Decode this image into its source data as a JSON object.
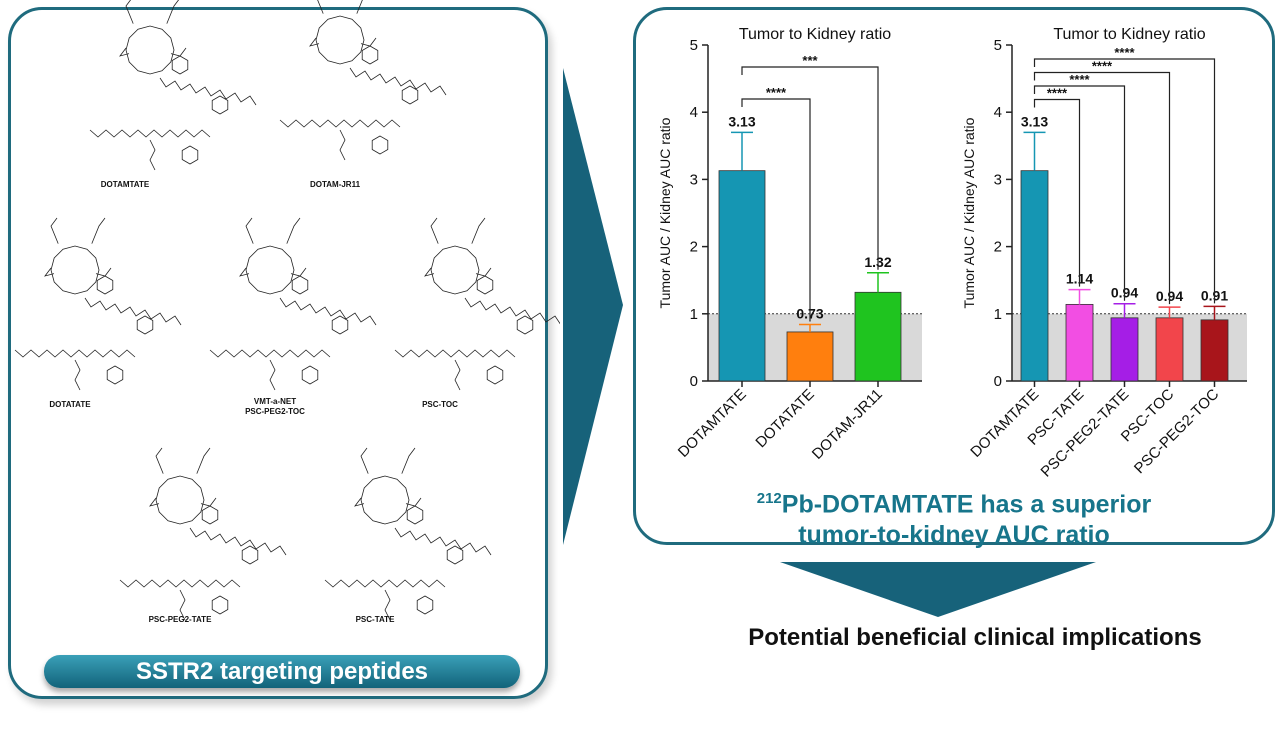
{
  "molecules": [
    {
      "id": "dotamtate",
      "label": "DOTAMTATE"
    },
    {
      "id": "dotam-jr11",
      "label": "DOTAM-JR11"
    },
    {
      "id": "dotatate",
      "label": "DOTATATE"
    },
    {
      "id": "vmt",
      "label": "VMT-a-NET\nPSC-PEG2-TOC"
    },
    {
      "id": "psc-toc",
      "label": "PSC-TOC"
    },
    {
      "id": "psc-peg2-tate",
      "label": "PSC-PEG2-TATE"
    },
    {
      "id": "psc-tate",
      "label": "PSC-TATE"
    }
  ],
  "banner": {
    "label": "SSTR2 targeting peptides"
  },
  "conclusion": {
    "sup": "212",
    "line1": "Pb-DOTAMTATE has a superior",
    "line2": "tumor-to-kidney AUC ratio"
  },
  "implication": {
    "label": "Potential beneficial clinical implications"
  },
  "colors": {
    "frame": "#1f6b7e",
    "arrow": "#17627a",
    "reference_band": "#d9d9d9"
  },
  "chart_data": [
    {
      "type": "bar",
      "title": "Tumor to Kidney ratio",
      "ylabel": "Tumor AUC / Kidney AUC ratio",
      "ylim": [
        0,
        5
      ],
      "yticks": [
        "0",
        "1",
        "2",
        "3",
        "4",
        "5"
      ],
      "reference_line": 1,
      "categories": [
        "DOTAMTATE",
        "DOTATATE",
        "DOTAM-JR11"
      ],
      "values": [
        3.13,
        0.73,
        1.32
      ],
      "errors": [
        0.57,
        0.11,
        0.29
      ],
      "value_labels": [
        "3.13",
        "0.73",
        "1.32"
      ],
      "colors": [
        "#1596b3",
        "#ff7f0e",
        "#1fc41f"
      ],
      "significance": [
        {
          "from": 0,
          "to": 1,
          "label": "****"
        },
        {
          "from": 0,
          "to": 2,
          "label": "***"
        }
      ]
    },
    {
      "type": "bar",
      "title": "Tumor to Kidney ratio",
      "ylabel": "Tumor AUC / Kidney AUC ratio",
      "ylim": [
        0,
        5
      ],
      "yticks": [
        "0",
        "1",
        "2",
        "3",
        "4",
        "5"
      ],
      "reference_line": 1,
      "categories": [
        "DOTAMTATE",
        "PSC-TATE",
        "PSC-PEG2-TATE",
        "PSC-TOC",
        "PSC-PEG2-TOC"
      ],
      "values": [
        3.13,
        1.14,
        0.94,
        0.94,
        0.91
      ],
      "errors": [
        0.57,
        0.22,
        0.21,
        0.16,
        0.2
      ],
      "value_labels": [
        "3.13",
        "1.14",
        "0.94",
        "0.94",
        "0.91"
      ],
      "colors": [
        "#1596b3",
        "#f24ee3",
        "#a51ee6",
        "#f2454b",
        "#a8151b"
      ],
      "significance": [
        {
          "from": 0,
          "to": 1,
          "label": "****"
        },
        {
          "from": 0,
          "to": 2,
          "label": "****"
        },
        {
          "from": 0,
          "to": 3,
          "label": "****"
        },
        {
          "from": 0,
          "to": 4,
          "label": "****"
        }
      ]
    }
  ]
}
